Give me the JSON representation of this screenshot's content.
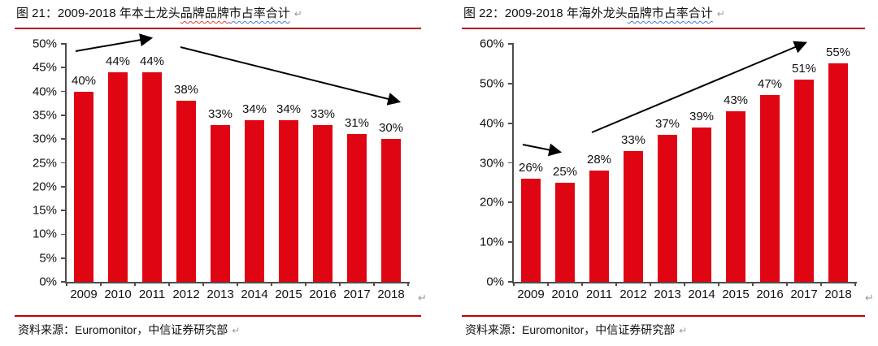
{
  "page": {
    "background": "#ffffff"
  },
  "colors": {
    "bar": "#e00513",
    "rule_red": "#c00000",
    "axis_gray": "#4d4d4d",
    "text": "#111111",
    "return_mark_gray": "#9a9a9a",
    "arrow_black": "#000000"
  },
  "figures": [
    {
      "title": "图 21：2009-2018 年本土龙头品牌品牌市占率合计",
      "title_segments": [
        {
          "text": "图 21：2009-2018 年本土龙头",
          "underline": "none"
        },
        {
          "text": "品牌品牌",
          "underline": "red-wavy"
        },
        {
          "text": "市占率合计",
          "underline": "blue-wavy"
        }
      ],
      "return_mark": "↵",
      "source": "资料来源：Euromonitor，中信证券研究部"
    },
    {
      "title": "图 22：2009-2018 年海外龙头品牌市占率合计",
      "title_segments": [
        {
          "text": "图 22：2009-2018 年海外龙头",
          "underline": "none"
        },
        {
          "text": "品牌市占率合计",
          "underline": "blue-wavy"
        }
      ],
      "return_mark": "↵",
      "source": "资料来源：Euromonitor，中信证券研究部"
    }
  ],
  "chart_data": [
    {
      "type": "bar",
      "title": "图 21：2009-2018 年本土龙头品牌品牌市占率合计",
      "categories": [
        "2009",
        "2010",
        "2011",
        "2012",
        "2013",
        "2014",
        "2015",
        "2016",
        "2017",
        "2018"
      ],
      "values": [
        40,
        44,
        44,
        38,
        33,
        34,
        34,
        33,
        31,
        30
      ],
      "value_suffix": "%",
      "xlabel": "",
      "ylabel": "",
      "ylim": [
        0,
        50
      ],
      "ytick_step": 5,
      "ytick_suffix": "%",
      "grid": false,
      "legend_position": "none",
      "bar_color": "#e00513",
      "annotations": [
        {
          "type": "arrow",
          "meaning": "initial-rise",
          "from": [
            75,
            23
          ],
          "to": [
            167,
            7
          ]
        },
        {
          "type": "arrow",
          "meaning": "declining-trend",
          "from": [
            204,
            18
          ],
          "to": [
            472,
            85
          ]
        }
      ]
    },
    {
      "type": "bar",
      "title": "图 22：2009-2018 年海外龙头品牌市占率合计",
      "categories": [
        "2009",
        "2010",
        "2011",
        "2012",
        "2013",
        "2014",
        "2015",
        "2016",
        "2017",
        "2018"
      ],
      "values": [
        26,
        25,
        28,
        33,
        37,
        39,
        43,
        47,
        51,
        55
      ],
      "value_suffix": "%",
      "xlabel": "",
      "ylabel": "",
      "ylim": [
        0,
        60
      ],
      "ytick_step": 10,
      "ytick_suffix": "%",
      "grid": false,
      "legend_position": "none",
      "bar_color": "#e00513",
      "annotations": [
        {
          "type": "arrow",
          "meaning": "initial-flat",
          "from": [
            75,
            138
          ],
          "to": [
            120,
            147
          ]
        },
        {
          "type": "arrow",
          "meaning": "rising-trend",
          "from": [
            160,
            123
          ],
          "to": [
            422,
            13
          ]
        }
      ]
    }
  ]
}
